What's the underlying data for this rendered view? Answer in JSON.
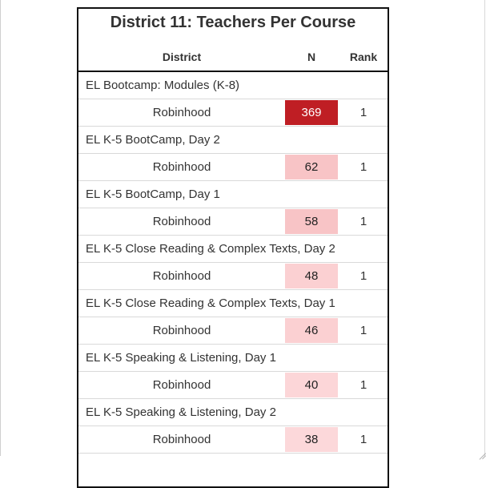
{
  "report": {
    "title": "District 11: Teachers Per Course",
    "headers": {
      "district": "District",
      "n": "N",
      "rank": "Rank"
    },
    "courses": [
      {
        "course": "EL Bootcamp: Modules (K-8)",
        "district": "Robinhood",
        "n": "369",
        "rank": "1",
        "bg": "#bf1e24",
        "fg": "#ffffff"
      },
      {
        "course": "EL K-5 BootCamp, Day 2",
        "district": "Robinhood",
        "n": "62",
        "rank": "1",
        "bg": "#f8c4c6",
        "fg": "#222222"
      },
      {
        "course": "EL K-5 BootCamp, Day 1",
        "district": "Robinhood",
        "n": "58",
        "rank": "1",
        "bg": "#f8c4c6",
        "fg": "#222222"
      },
      {
        "course": "EL K-5 Close Reading & Complex Texts, Day 2",
        "district": "Robinhood",
        "n": "48",
        "rank": "1",
        "bg": "#fbd0d2",
        "fg": "#222222"
      },
      {
        "course": "EL K-5 Close Reading & Complex Texts, Day 1",
        "district": "Robinhood",
        "n": "46",
        "rank": "1",
        "bg": "#fbd0d2",
        "fg": "#222222"
      },
      {
        "course": "EL K-5 Speaking & Listening, Day 1",
        "district": "Robinhood",
        "n": "40",
        "rank": "1",
        "bg": "#fcd6d8",
        "fg": "#222222"
      },
      {
        "course": "EL K-5 Speaking & Listening, Day 2",
        "district": "Robinhood",
        "n": "38",
        "rank": "1",
        "bg": "#fcd8da",
        "fg": "#222222"
      }
    ]
  }
}
